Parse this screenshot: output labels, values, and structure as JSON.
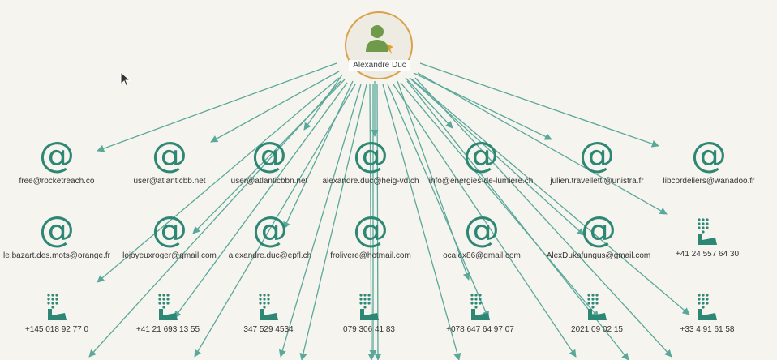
{
  "root": {
    "name": "Alexandre Duc",
    "icon": "person-icon"
  },
  "emails": [
    "free@rocketreach.co",
    "user@atlanticbb.net",
    "user@atlanticbbn.net",
    "alexandre.duc@heig-vd.ch",
    "info@energies-de-lumiere.ch",
    "julien.travelletti@unistra.fr",
    "libcordeliers@wanadoo.fr",
    "le.bazart.des.mots@orange.fr",
    "lejoyeuxroger@gmail.com",
    "alexandre.duc@epfl.ch",
    "frolivere@hotmail.com",
    "ocalex86@gmail.com",
    "AlexDukafungus@gmail.com"
  ],
  "phones": [
    "+41 24 557 64 30",
    "+145 018 92 77 0",
    "+41 21 693 13 55",
    "347 529 4534",
    "079 306 41 83",
    "+078 647 64 97 07",
    "2021 09 02 15",
    "+33 4 91 61 58"
  ],
  "colors": {
    "edge": "#5aa89a",
    "icon": "#2e8775",
    "root_border": "#dba24a"
  }
}
